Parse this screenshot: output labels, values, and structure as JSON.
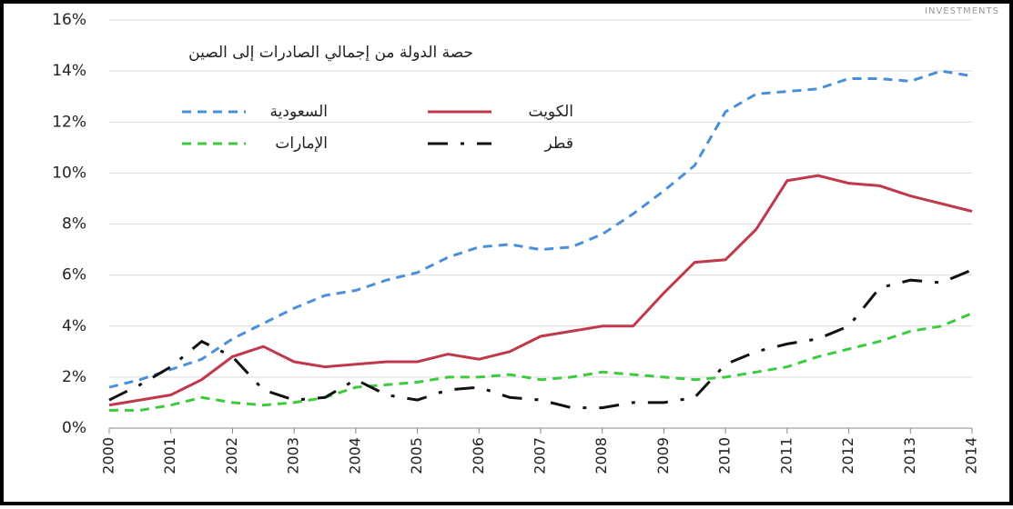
{
  "chart_data": {
    "type": "line",
    "title": "حصة الدولة من إجمالي الصادرات إلى الصين",
    "watermark": "INVESTMENTS",
    "x": [
      2000,
      2000.5,
      2001,
      2001.5,
      2002,
      2002.5,
      2003,
      2003.5,
      2004,
      2004.5,
      2005,
      2005.5,
      2006,
      2006.5,
      2007,
      2007.5,
      2008,
      2008.5,
      2009,
      2009.5,
      2010,
      2010.5,
      2011,
      2011.5,
      2012,
      2012.5,
      2013,
      2013.5,
      2014
    ],
    "series": [
      {
        "name": "السعودية",
        "color": "#4a90d9",
        "dash": "dashed",
        "values": [
          1.6,
          1.9,
          2.3,
          2.7,
          3.5,
          4.1,
          4.7,
          5.2,
          5.4,
          5.8,
          6.1,
          6.7,
          7.1,
          7.2,
          7.0,
          7.1,
          7.6,
          8.4,
          9.3,
          10.3,
          12.4,
          13.1,
          13.2,
          13.3,
          13.7,
          13.7,
          13.6,
          14.0,
          13.8
        ]
      },
      {
        "name": "الكويت",
        "color": "#c0394b",
        "dash": "solid",
        "values": [
          0.9,
          1.1,
          1.3,
          1.9,
          2.8,
          3.2,
          2.6,
          2.4,
          2.5,
          2.6,
          2.6,
          2.9,
          2.7,
          3.0,
          3.6,
          3.8,
          4.0,
          4.0,
          5.3,
          6.5,
          6.6,
          7.8,
          9.7,
          9.9,
          9.6,
          9.5,
          9.1,
          8.8,
          8.5
        ]
      },
      {
        "name": "الإمارات",
        "color": "#3ec93e",
        "dash": "dashed",
        "values": [
          0.7,
          0.7,
          0.9,
          1.2,
          1.0,
          0.9,
          1.0,
          1.2,
          1.6,
          1.7,
          1.8,
          2.0,
          2.0,
          2.1,
          1.9,
          2.0,
          2.2,
          2.1,
          2.0,
          1.9,
          2.0,
          2.2,
          2.4,
          2.8,
          3.1,
          3.4,
          3.8,
          4.0,
          4.5
        ]
      },
      {
        "name": "قطر",
        "color": "#111111",
        "dash": "dashdot",
        "values": [
          1.1,
          1.7,
          2.4,
          3.4,
          2.8,
          1.5,
          1.1,
          1.2,
          1.9,
          1.3,
          1.1,
          1.5,
          1.6,
          1.2,
          1.1,
          0.8,
          0.8,
          1.0,
          1.0,
          1.2,
          2.5,
          3.0,
          3.3,
          3.5,
          4.0,
          5.5,
          5.8,
          5.7,
          6.2
        ]
      }
    ],
    "xlim": [
      2000,
      2014
    ],
    "xticks": [
      2000,
      2001,
      2002,
      2003,
      2004,
      2005,
      2006,
      2007,
      2008,
      2009,
      2010,
      2011,
      2012,
      2013,
      2014
    ],
    "ylim": [
      0,
      16
    ],
    "yticks": [
      {
        "value": 0,
        "label": "0%"
      },
      {
        "value": 2,
        "label": "2%"
      },
      {
        "value": 4,
        "label": "4%"
      },
      {
        "value": 6,
        "label": "6%"
      },
      {
        "value": 8,
        "label": "8%"
      },
      {
        "value": 10,
        "label": "10%"
      },
      {
        "value": 12,
        "label": "12%"
      },
      {
        "value": 14,
        "label": "14%"
      },
      {
        "value": 16,
        "label": "16%"
      }
    ],
    "grid": true
  }
}
